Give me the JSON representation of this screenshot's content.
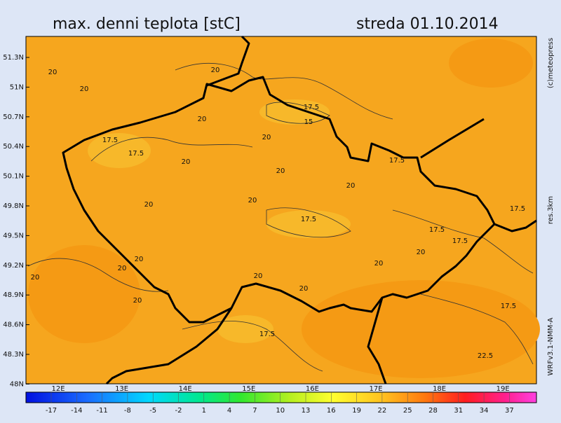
{
  "header": {
    "title": "max. denni teplota [stC]",
    "date": "streda 01.10.2014"
  },
  "map": {
    "lat_labels": [
      "51.3N",
      "51N",
      "50.7N",
      "50.4N",
      "50.1N",
      "49.8N",
      "49.5N",
      "49.2N",
      "48.9N",
      "48.6N",
      "48.3N",
      "48N"
    ],
    "lon_labels": [
      "12E",
      "13E",
      "14E",
      "15E",
      "16E",
      "17E",
      "18E",
      "19E"
    ],
    "contour_labels": [
      "20",
      "20",
      "20",
      "17.5",
      "15",
      "20",
      "17.5",
      "20",
      "17.5",
      "20",
      "20",
      "20",
      "17.5",
      "17.5",
      "20",
      "20",
      "17.5",
      "20",
      "20",
      "20",
      "20",
      "17.5",
      "20",
      "17.5",
      "20",
      "17.5",
      "22.5",
      "17.5",
      "20",
      "20"
    ]
  },
  "side_labels": {
    "copyright": "(c)meteopress",
    "resolution": "res.3km",
    "model": "WRFv3.1-NMM-A"
  },
  "colorbar": {
    "ticks": [
      "-17",
      "-14",
      "-11",
      "-8",
      "-5",
      "-2",
      "1",
      "4",
      "7",
      "10",
      "13",
      "16",
      "19",
      "22",
      "25",
      "28",
      "31",
      "34",
      "37"
    ]
  }
}
